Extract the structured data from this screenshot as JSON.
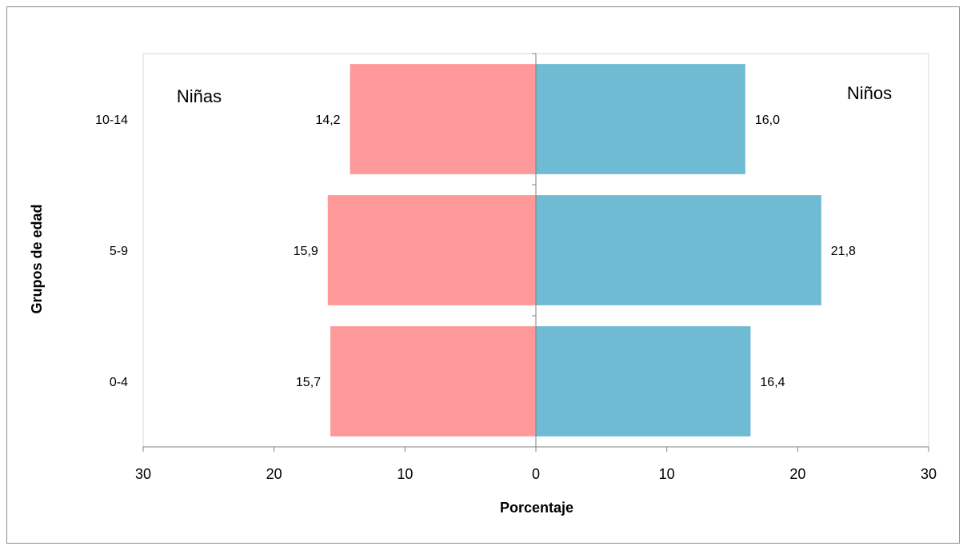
{
  "chart_data": {
    "type": "bar",
    "orientation": "horizontal",
    "layout": "population-pyramid",
    "categories": [
      "0-4",
      "5-9",
      "10-14"
    ],
    "series": [
      {
        "name": "Niñas",
        "values": [
          15.7,
          15.9,
          14.2
        ],
        "value_labels": [
          "15,7",
          "15,9",
          "14,2"
        ],
        "side": "left",
        "color": "#ff9999"
      },
      {
        "name": "Niños",
        "values": [
          16.4,
          21.8,
          16.0
        ],
        "value_labels": [
          "16,4",
          "21,8",
          "16,0"
        ],
        "side": "right",
        "color": "#6fbbd3"
      }
    ],
    "xlabel": "Porcentaje",
    "ylabel": "Grupos de edad",
    "xlim": [
      -30,
      30
    ],
    "x_ticks": [
      -30,
      -20,
      -10,
      0,
      10,
      20,
      30
    ],
    "x_tick_labels": [
      "30",
      "20",
      "10",
      "0",
      "10",
      "20",
      "30"
    ],
    "grid": false,
    "legend": "none"
  }
}
